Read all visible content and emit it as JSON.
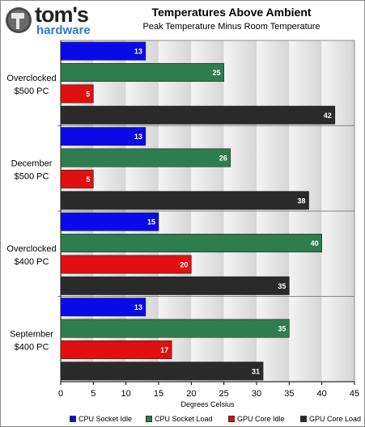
{
  "logo": {
    "name": "tom's",
    "sub": "hardware"
  },
  "chart_data": {
    "type": "bar",
    "orientation": "horizontal",
    "title": "Temperatures Above Ambient",
    "subtitle": "Peak Temperature Minus Room Temperature",
    "xlabel": "Degrees Celsius",
    "ylabel": "",
    "xlim": [
      0,
      45
    ],
    "xticks": [
      0,
      5,
      10,
      15,
      20,
      25,
      30,
      35,
      40,
      45
    ],
    "grid": "vertical-bands",
    "legend_position": "bottom",
    "categories": [
      [
        "Overclocked",
        "$500 PC"
      ],
      [
        "December",
        "$500 PC"
      ],
      [
        "Overclocked",
        "$400 PC"
      ],
      [
        "September",
        "$400 PC"
      ]
    ],
    "series": [
      {
        "name": "CPU Socket Idle",
        "color": "#0a0ae8",
        "values": [
          13,
          13,
          15,
          13
        ]
      },
      {
        "name": "CPU Socket Load",
        "color": "#2e7d4f",
        "values": [
          25,
          26,
          40,
          35
        ]
      },
      {
        "name": "GPU Core Idle",
        "color": "#e01010",
        "values": [
          5,
          5,
          20,
          17
        ]
      },
      {
        "name": "GPU Core Load",
        "color": "#2a2a2a",
        "values": [
          42,
          38,
          35,
          31
        ]
      }
    ]
  }
}
